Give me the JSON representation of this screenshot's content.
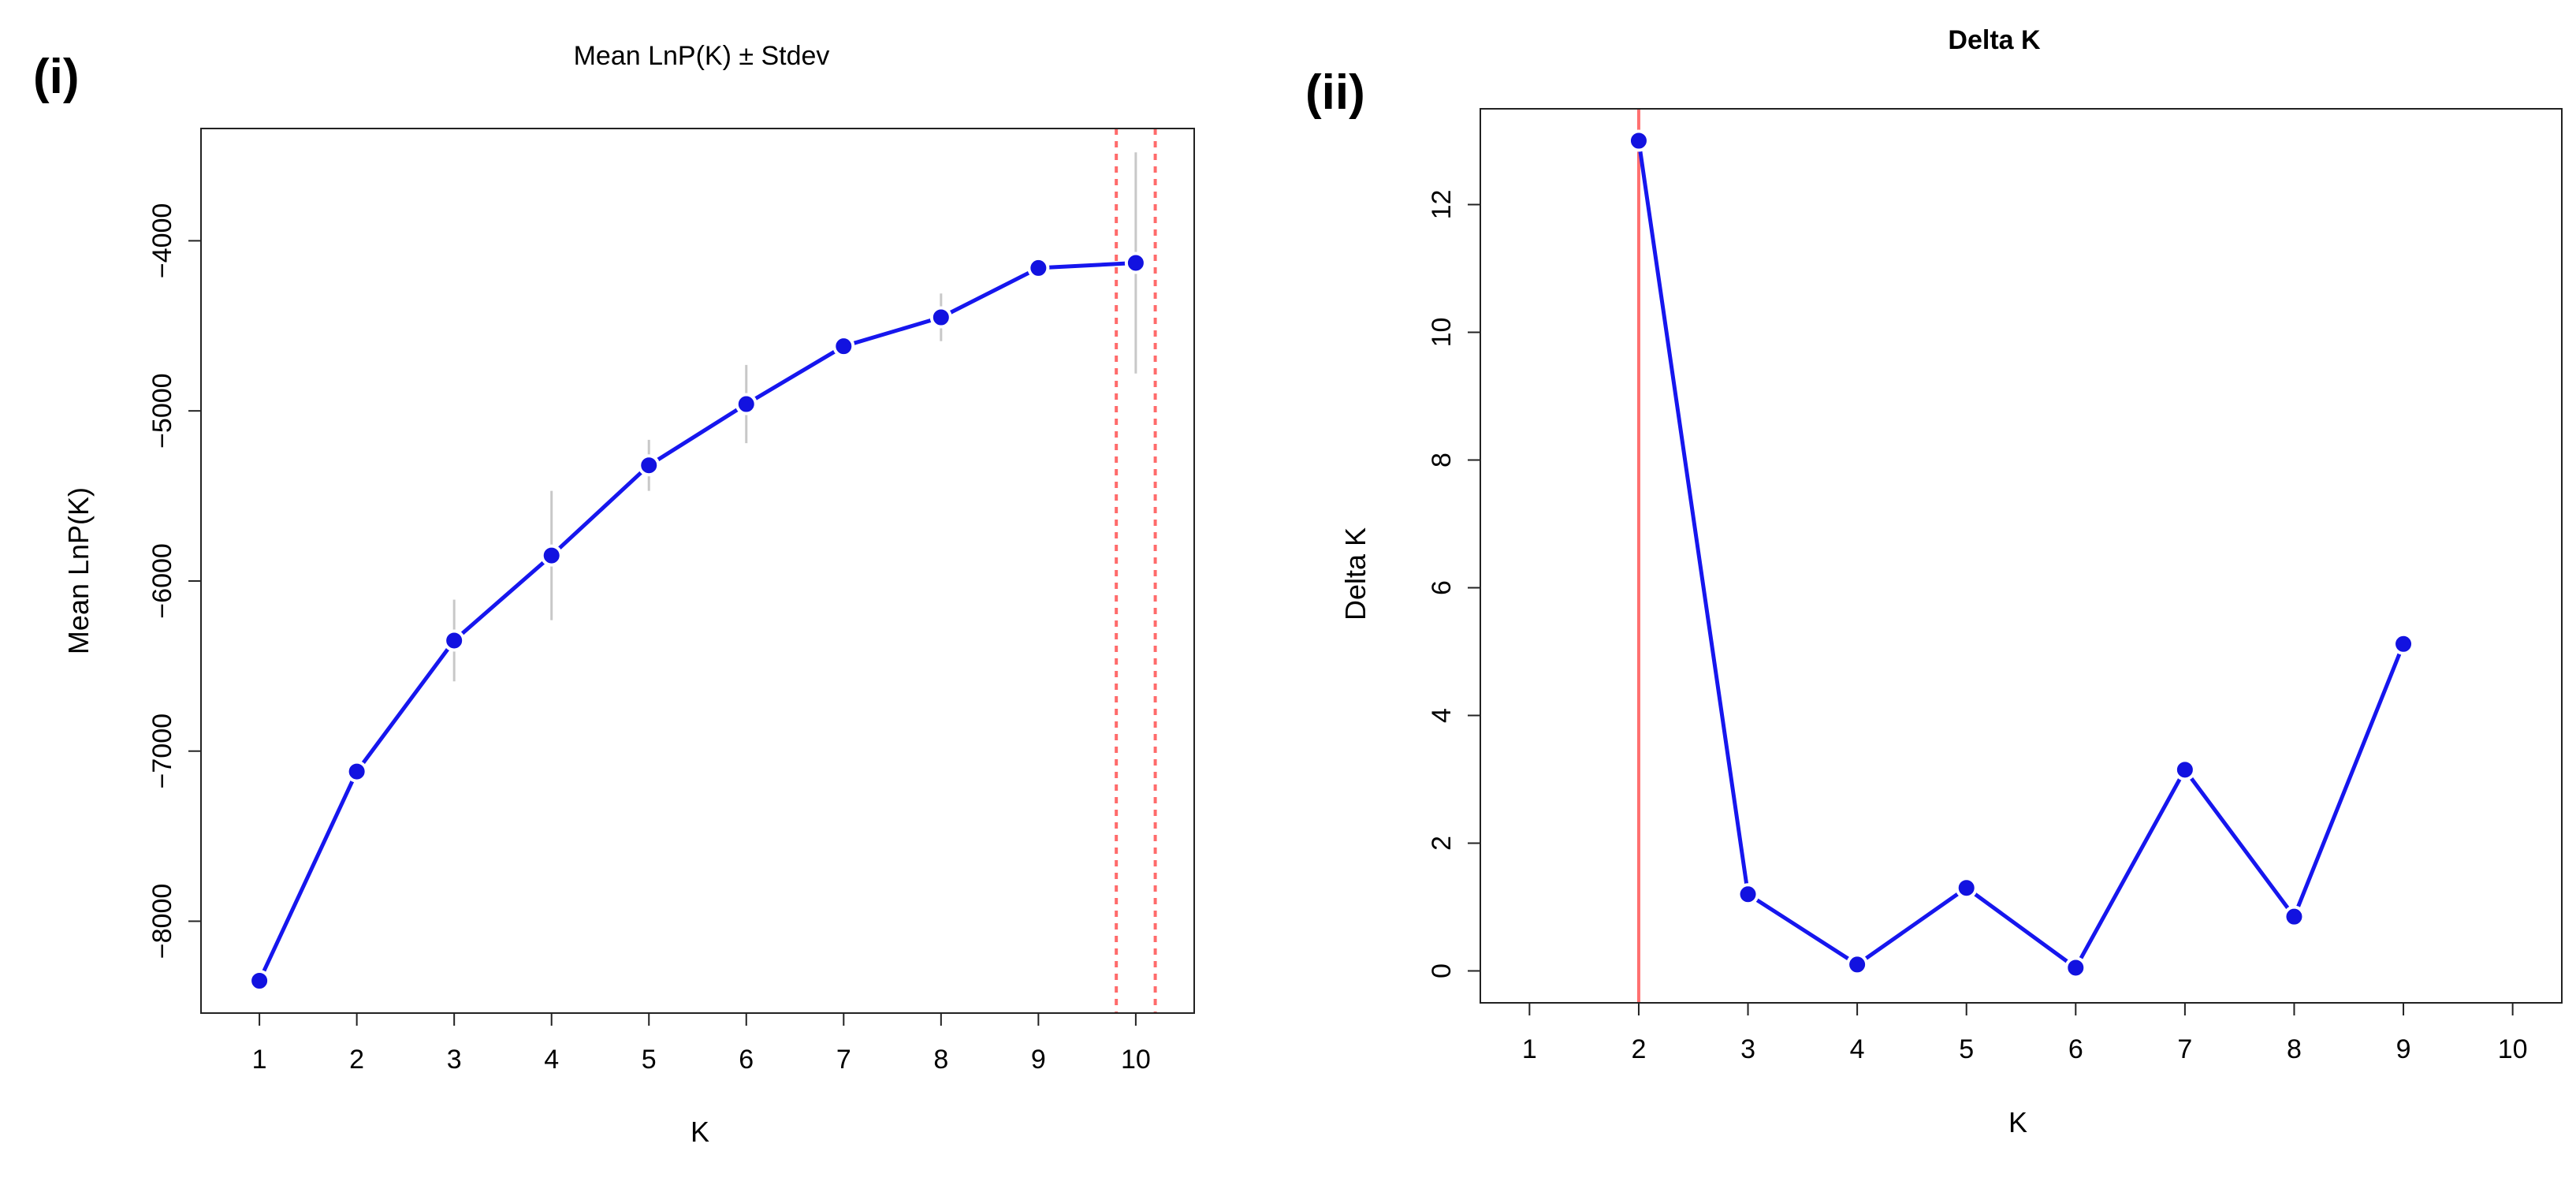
{
  "chart_data": [
    {
      "panel": "(i)",
      "type": "line",
      "title": "Mean LnP(K) ± Stdev",
      "xlabel": "K",
      "ylabel": "Mean LnP(K)",
      "x": [
        1,
        2,
        3,
        4,
        5,
        6,
        7,
        8,
        9,
        10
      ],
      "xticks": [
        1,
        2,
        3,
        4,
        5,
        6,
        7,
        8,
        9,
        10
      ],
      "xlim": [
        0.4,
        10.6
      ],
      "yticks": [
        -8000,
        -7000,
        -6000,
        -5000,
        -4000
      ],
      "ylim": [
        -8540,
        -3340
      ],
      "series": [
        {
          "name": "Mean LnP(K)",
          "values": [
            -8350,
            -7120,
            -6350,
            -5850,
            -5320,
            -4960,
            -4620,
            -4450,
            -4160,
            -4130
          ],
          "stdev": [
            0,
            0,
            240,
            380,
            150,
            230,
            0,
            140,
            0,
            650
          ]
        }
      ],
      "reference_lines": [
        9.8,
        10.2
      ]
    },
    {
      "panel": "(ii)",
      "type": "line",
      "title": "Delta K",
      "xlabel": "K",
      "ylabel": "Delta K",
      "x": [
        2,
        3,
        4,
        5,
        6,
        7,
        8,
        9
      ],
      "xticks": [
        1,
        2,
        3,
        4,
        5,
        6,
        7,
        8,
        9,
        10
      ],
      "xlim": [
        0.55,
        10.45
      ],
      "yticks": [
        0,
        2,
        4,
        6,
        8,
        10,
        12
      ],
      "ylim": [
        -0.5,
        13.5
      ],
      "series": [
        {
          "name": "Delta K",
          "values": [
            13.0,
            1.2,
            0.1,
            1.3,
            0.05,
            3.15,
            0.85,
            5.12
          ]
        }
      ],
      "reference_lines": [
        2
      ]
    }
  ]
}
